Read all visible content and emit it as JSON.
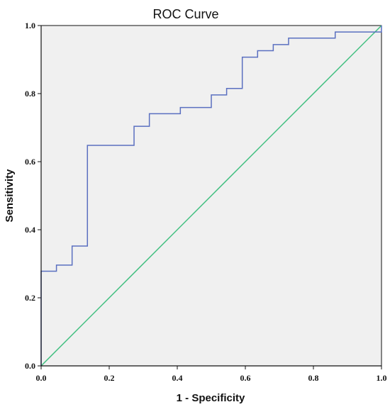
{
  "chart_data": {
    "type": "line",
    "title": "ROC Curve",
    "xlabel": "1 - Specificity",
    "ylabel": "Sensitivity",
    "xlim": [
      0,
      1
    ],
    "ylim": [
      0,
      1
    ],
    "x_ticks": [
      "0.0",
      "0.2",
      "0.4",
      "0.6",
      "0.8",
      "1.0"
    ],
    "y_ticks": [
      "0.0",
      "0.2",
      "0.4",
      "0.6",
      "0.8",
      "1.0"
    ],
    "grid": false,
    "legend": "none",
    "background_color": "#f0f0f0",
    "series": [
      {
        "style": "step",
        "color": "#5a6fc0",
        "x": [
          0.0,
          0.0,
          0.045,
          0.045,
          0.091,
          0.091,
          0.136,
          0.136,
          0.273,
          0.273,
          0.318,
          0.318,
          0.409,
          0.409,
          0.5,
          0.5,
          0.545,
          0.545,
          0.591,
          0.591,
          0.636,
          0.636,
          0.682,
          0.682,
          0.727,
          0.727,
          0.864,
          0.864,
          1.0,
          1.0
        ],
        "y": [
          0.0,
          0.278,
          0.278,
          0.296,
          0.296,
          0.352,
          0.352,
          0.648,
          0.648,
          0.704,
          0.704,
          0.741,
          0.741,
          0.759,
          0.759,
          0.796,
          0.796,
          0.815,
          0.815,
          0.907,
          0.907,
          0.926,
          0.926,
          0.944,
          0.944,
          0.963,
          0.963,
          0.981,
          0.981,
          1.0
        ]
      },
      {
        "style": "reference",
        "color": "#3fbf7f",
        "x": [
          0,
          1
        ],
        "y": [
          0,
          1
        ]
      }
    ]
  }
}
